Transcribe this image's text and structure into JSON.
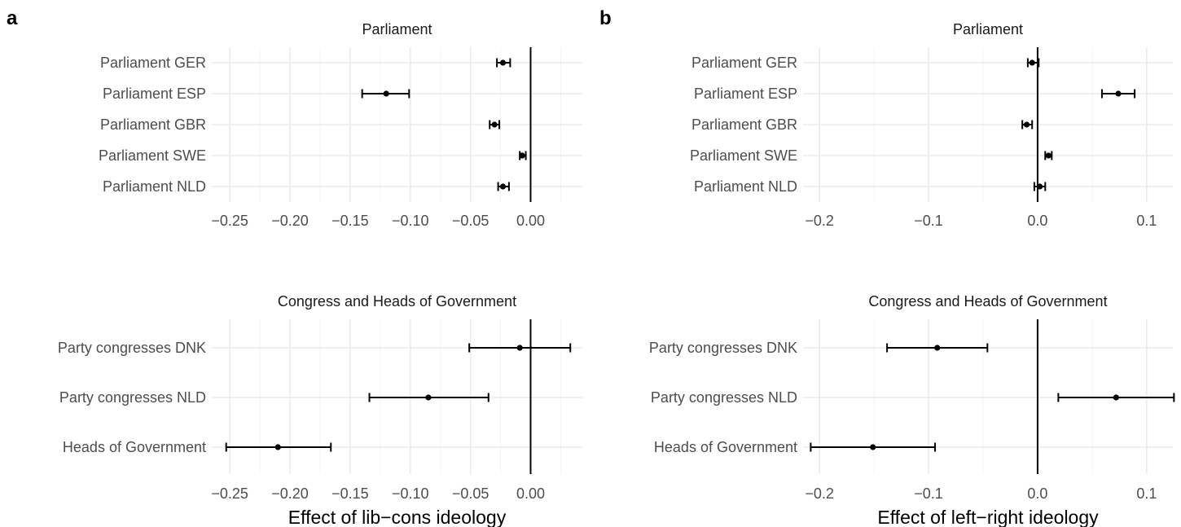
{
  "chart_data": [
    {
      "type": "dot-errorbar",
      "panel": "a",
      "facet": "top",
      "title": "Parliament",
      "xlim": [
        -0.265,
        0.043
      ],
      "xticks": [
        -0.25,
        -0.2,
        -0.15,
        -0.1,
        -0.05,
        0.0
      ],
      "tick_labels": [
        "−0.25",
        "−0.20",
        "−0.15",
        "−0.10",
        "−0.05",
        "0.00"
      ],
      "ref_line": 0,
      "categories": [
        "Parliament GER",
        "Parliament ESP",
        "Parliament GBR",
        "Parliament SWE",
        "Parliament NLD"
      ],
      "estimates": [
        -0.023,
        -0.12,
        -0.03,
        -0.007,
        -0.023
      ],
      "lower": [
        -0.028,
        -0.14,
        -0.034,
        -0.009,
        -0.027
      ],
      "upper": [
        -0.017,
        -0.101,
        -0.026,
        -0.004,
        -0.018
      ]
    },
    {
      "type": "dot-errorbar",
      "panel": "a",
      "facet": "bottom",
      "title": "Congress and Heads of Government",
      "xlabel": "Effect of lib−cons ideology",
      "xlim": [
        -0.265,
        0.043
      ],
      "xticks": [
        -0.25,
        -0.2,
        -0.15,
        -0.1,
        -0.05,
        0.0
      ],
      "tick_labels": [
        "−0.25",
        "−0.20",
        "−0.15",
        "−0.10",
        "−0.05",
        "0.00"
      ],
      "ref_line": 0,
      "categories": [
        "Party congresses DNK",
        "Party congresses NLD",
        "Heads of Government"
      ],
      "estimates": [
        -0.009,
        -0.085,
        -0.21
      ],
      "lower": [
        -0.051,
        -0.134,
        -0.253
      ],
      "upper": [
        0.033,
        -0.035,
        -0.166
      ]
    },
    {
      "type": "dot-errorbar",
      "panel": "b",
      "facet": "top",
      "title": "Parliament",
      "xlim": [
        -0.215,
        0.124
      ],
      "xticks": [
        -0.2,
        -0.1,
        0.0,
        0.1
      ],
      "tick_labels": [
        "−0.2",
        "−0.1",
        "0.0",
        "0.1"
      ],
      "ref_line": 0,
      "categories": [
        "Parliament GER",
        "Parliament ESP",
        "Parliament GBR",
        "Parliament SWE",
        "Parliament NLD"
      ],
      "estimates": [
        -0.005,
        0.074,
        -0.01,
        0.01,
        0.002
      ],
      "lower": [
        -0.009,
        0.059,
        -0.014,
        0.007,
        -0.003
      ],
      "upper": [
        0.001,
        0.089,
        -0.005,
        0.013,
        0.007
      ]
    },
    {
      "type": "dot-errorbar",
      "panel": "b",
      "facet": "bottom",
      "title": "Congress and Heads of Government",
      "xlabel": "Effect of left−right ideology",
      "xlim": [
        -0.215,
        0.124
      ],
      "xticks": [
        -0.2,
        -0.1,
        0.0,
        0.1
      ],
      "tick_labels": [
        "−0.2",
        "−0.1",
        "0.0",
        "0.1"
      ],
      "ref_line": 0,
      "categories": [
        "Party congresses DNK",
        "Party congresses NLD",
        "Heads of Government"
      ],
      "estimates": [
        -0.092,
        0.072,
        -0.151
      ],
      "lower": [
        -0.138,
        0.019,
        -0.208
      ],
      "upper": [
        -0.046,
        0.125,
        -0.094
      ]
    }
  ],
  "style": {
    "point_color": "#000000",
    "grid_color": "#ebebeb",
    "label_color": "#4d4d4d"
  }
}
